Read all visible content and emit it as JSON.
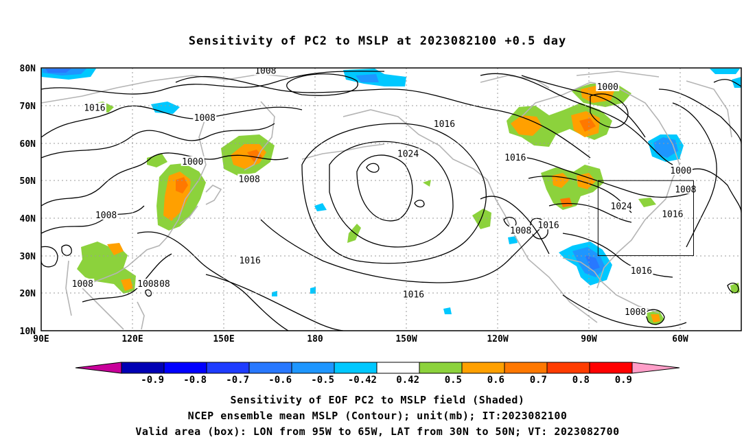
{
  "title": "Sensitivity of PC2 to MSLP at 2023082100 +0.5 day",
  "map": {
    "lat_labels": [
      "80N",
      "70N",
      "60N",
      "50N",
      "40N",
      "30N",
      "20N",
      "10N"
    ],
    "lon_labels": [
      "90E",
      "120E",
      "150E",
      "180",
      "150W",
      "120W",
      "90W",
      "60W"
    ],
    "contour_labels": [
      {
        "text": "1008",
        "lon": 160.5,
        "lat": 79.2
      },
      {
        "text": "1016",
        "lon": 106.8,
        "lat": 69.3
      },
      {
        "text": "1008",
        "lon": 141.4,
        "lat": 66.7
      },
      {
        "text": "1000",
        "lon": 137.6,
        "lat": 55.0
      },
      {
        "text": "1008",
        "lon": 155.4,
        "lat": 50.3
      },
      {
        "text": "1008",
        "lon": 110.4,
        "lat": 40.7
      },
      {
        "text": "1016",
        "lon": 155.6,
        "lat": 28.6
      },
      {
        "text": "1008",
        "lon": 103.0,
        "lat": 22.4
      },
      {
        "text": "1008",
        "lon": 123.6,
        "lat": 22.4
      },
      {
        "text": "08",
        "lon": 128.8,
        "lat": 22.4
      },
      {
        "text": "1016",
        "lon": 216.7,
        "lat": 65.0
      },
      {
        "text": "1024",
        "lon": 205.3,
        "lat": 57.1
      },
      {
        "text": "1016",
        "lon": 239.0,
        "lat": 56.1
      },
      {
        "text": "1016",
        "lon": 207.0,
        "lat": 19.6
      },
      {
        "text": "1008",
        "lon": 240.7,
        "lat": 36.6
      },
      {
        "text": "1016",
        "lon": 249.4,
        "lat": 38.1
      },
      {
        "text": "1000",
        "lon": 268.0,
        "lat": 74.9
      },
      {
        "text": "1000",
        "lon": 291.0,
        "lat": 52.6
      },
      {
        "text": "1008",
        "lon": 292.5,
        "lat": 47.6
      },
      {
        "text": "1024",
        "lon": 272.3,
        "lat": 43.1
      },
      {
        "text": "1016",
        "lon": 288.4,
        "lat": 41.0
      },
      {
        "text": "1016",
        "lon": 278.6,
        "lat": 25.9
      },
      {
        "text": "1008",
        "lon": 276.7,
        "lat": 14.9
      }
    ],
    "valid_box": {
      "lon_min": 265,
      "lon_max": 295,
      "lat_min": 30,
      "lat_max": 50
    }
  },
  "colorbar": {
    "labels": [
      "-0.9",
      "-0.8",
      "-0.7",
      "-0.6",
      "-0.5",
      "-0.42",
      "0.42",
      "0.5",
      "0.6",
      "0.7",
      "0.8",
      "0.9"
    ],
    "colors": [
      "#0000b4",
      "#0000ff",
      "#1e3cff",
      "#2878ff",
      "#1e96ff",
      "#00c8ff",
      "#ffffff",
      "#8cd23c",
      "#ffa000",
      "#ff7800",
      "#ff3c00",
      "#ff0000"
    ],
    "low_end_color": "#c8009a",
    "high_end_color": "#ff9ec8"
  },
  "footer": {
    "line1": "Sensitivity of EOF PC2 to MSLP field (Shaded)",
    "line2": "NCEP ensemble mean MSLP (Contour); unit(mb); IT:2023082100",
    "line3": "Valid area (box): LON from 95W to 65W, LAT from 30N to 50N; VT: 2023082700"
  }
}
